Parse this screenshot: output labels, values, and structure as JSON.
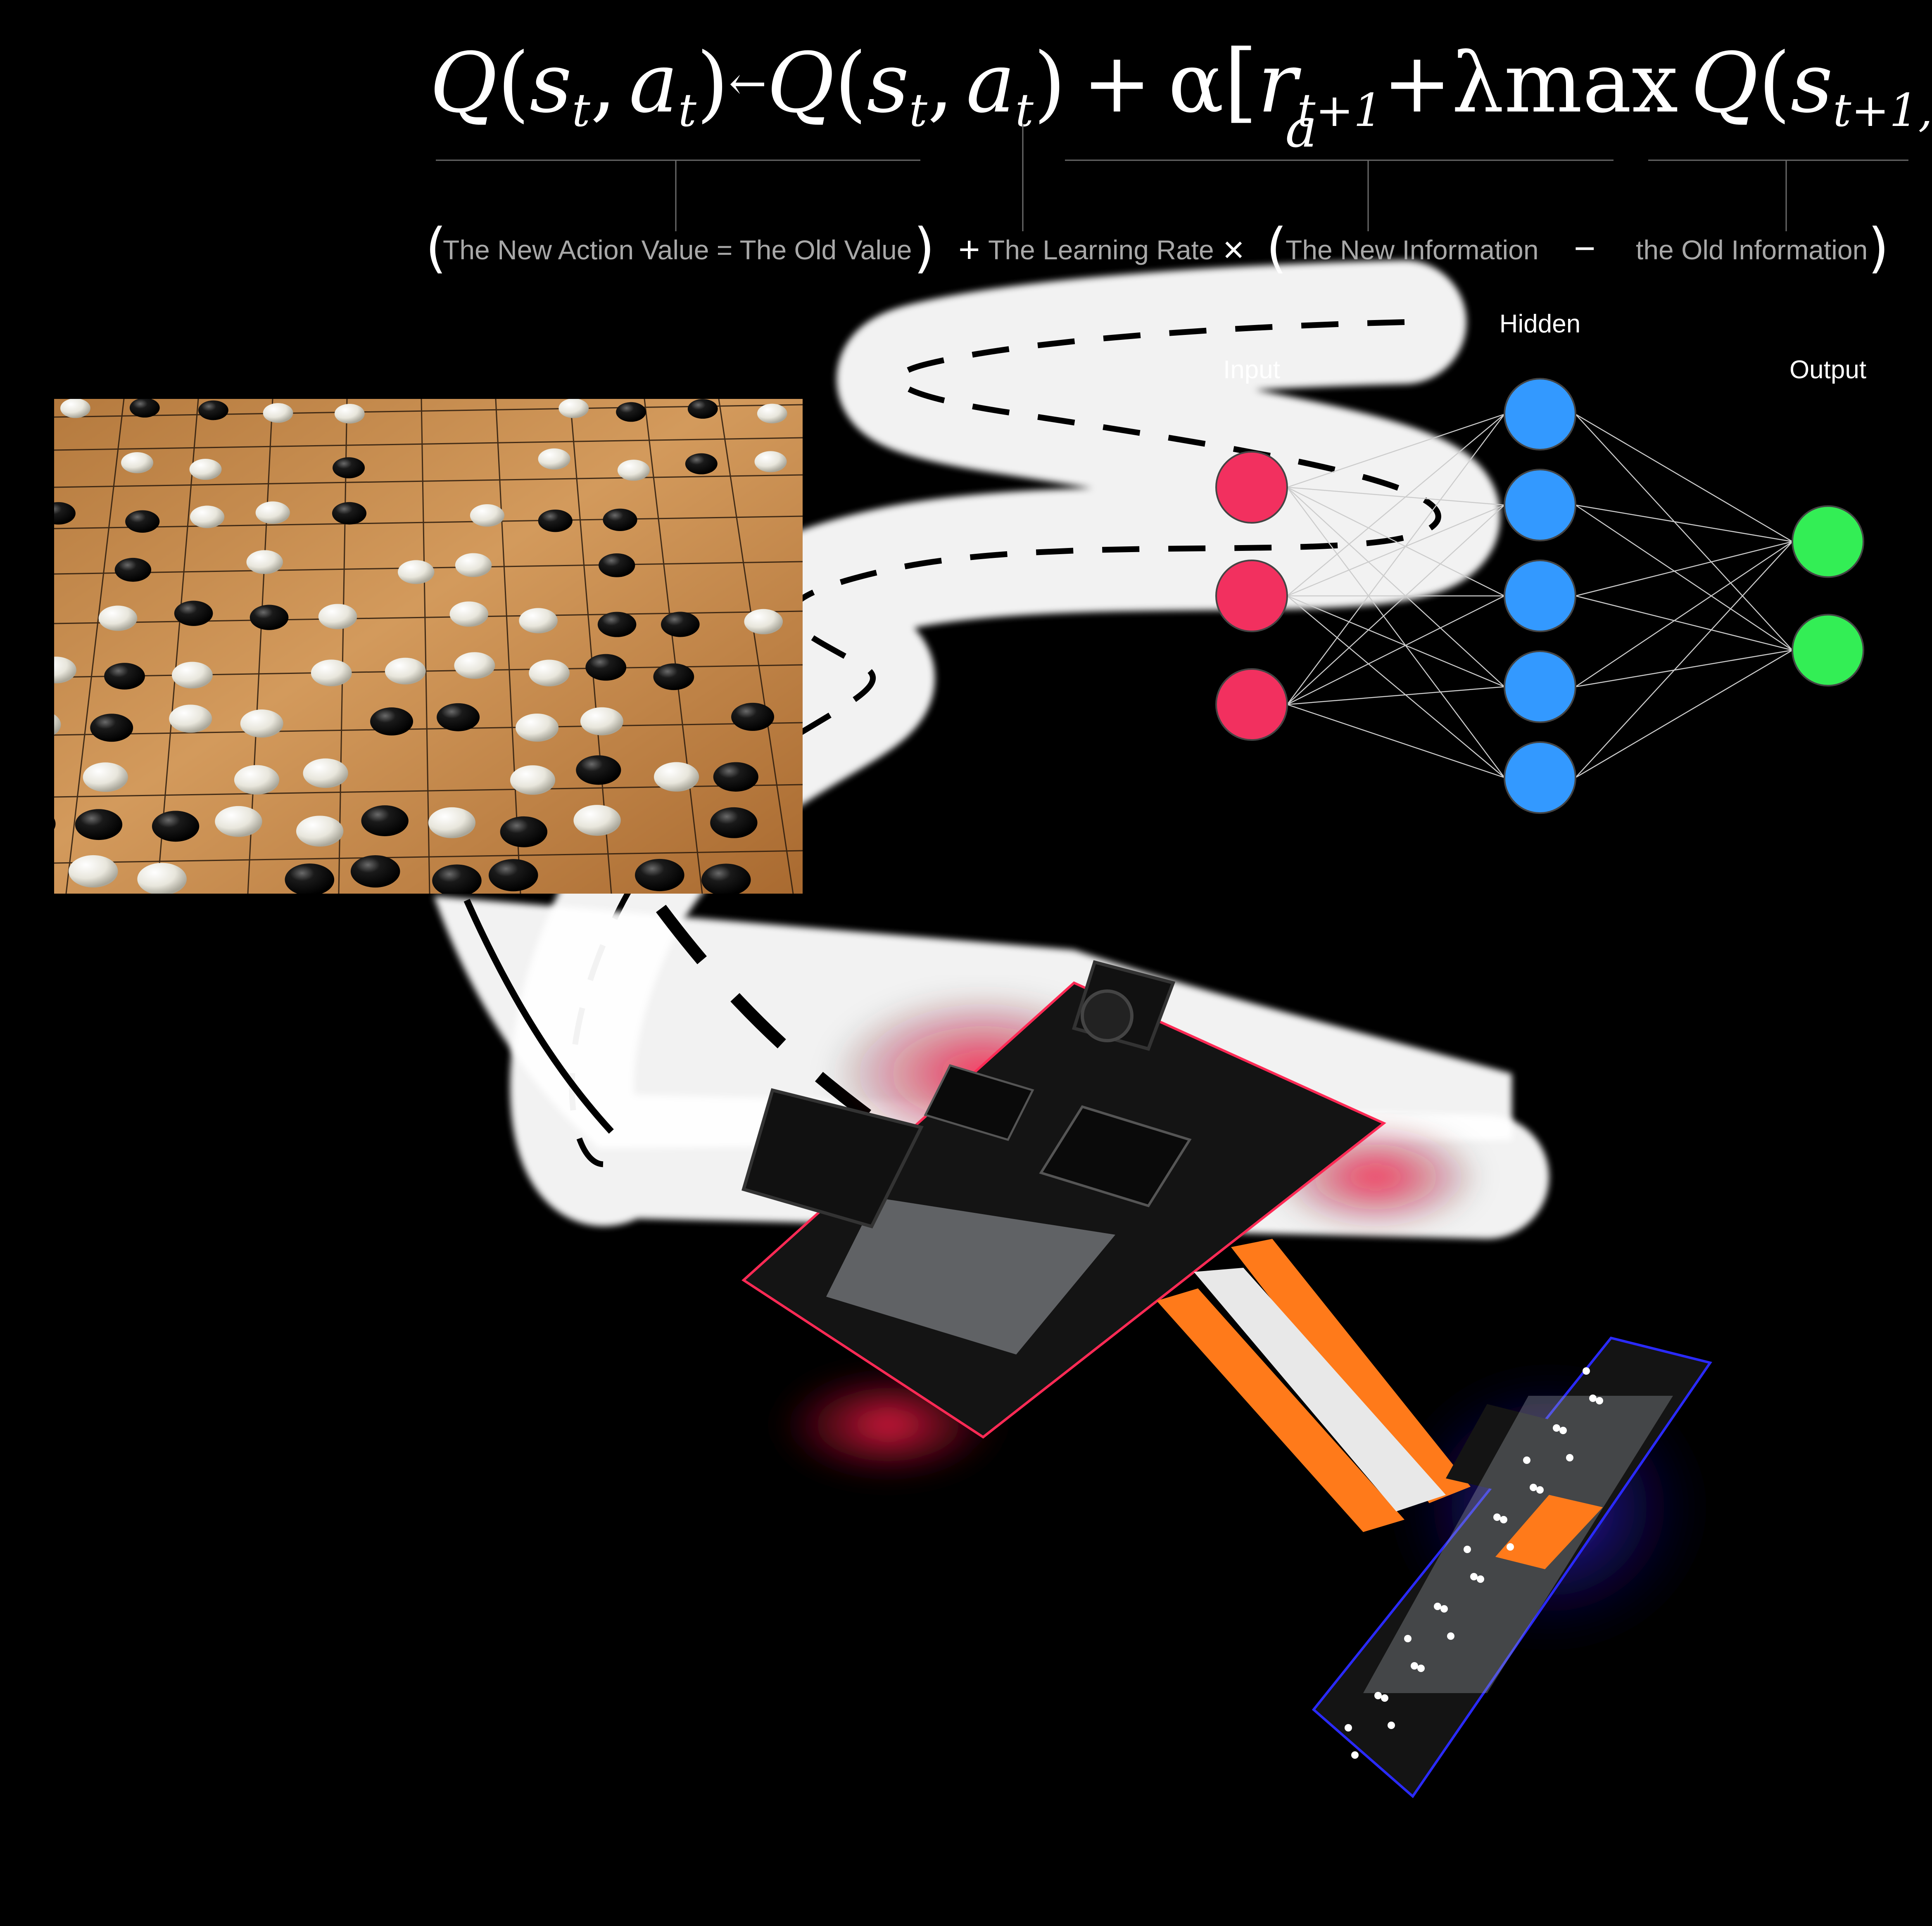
{
  "equation": {
    "q": "Q",
    "s": "s",
    "a": "a",
    "sub_t": "t",
    "arrow": "←",
    "plus": "+",
    "alpha": "α",
    "r": "r",
    "sub_t1": "t+1",
    "lambda": "λ",
    "max": "max",
    "max_sub": "a",
    "sub_t1_comma": "t+1,",
    "minus": "-",
    "open_paren": "(",
    "close_paren": ")",
    "comma": ",",
    "open_bracket": "[",
    "close_bracket": "]"
  },
  "gloss": {
    "new_action_value": "The New Action Value = The Old Value",
    "learning_rate": "The Learning Rate",
    "new_information": "The New Information",
    "old_information": "the Old Information",
    "op_plus": "+",
    "op_times": "×",
    "op_minus": "−",
    "open_paren": "(",
    "close_paren": ")"
  },
  "network": {
    "input_label": "Input",
    "hidden_label": "Hidden",
    "output_label": "Output",
    "input_count": 3,
    "hidden_count": 5,
    "output_count": 2,
    "input_color": "#f2305f",
    "hidden_color": "#3399ff",
    "output_color": "#33ee55"
  },
  "images": {
    "go_board": "go-board-photo",
    "road": "winding-road",
    "robot": "line-follower-robot-pcb"
  },
  "colors": {
    "background": "#000000",
    "board_wood": "#c8894a",
    "pcb_black": "#141414",
    "glow_red": "#ff1f4b",
    "ribbon_orange": "#ff7a1a"
  }
}
